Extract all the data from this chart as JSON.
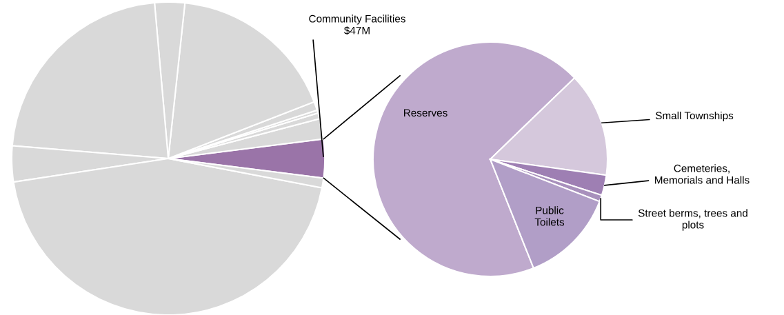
{
  "chart_data": [
    {
      "type": "pie",
      "categories": [
        "Community Facilities\n$47M",
        null,
        null,
        null,
        null,
        null,
        null,
        null,
        null,
        null,
        null
      ],
      "values": [
        4.0,
        2.1,
        0.6,
        0.3,
        0.9,
        17.4,
        3.1,
        22.3,
        3.7,
        44.6,
        1.0
      ],
      "colors": [
        "#9a74a8",
        "#d9d9d9",
        "#d9d9d9",
        "#d9d9d9",
        "#d9d9d9",
        "#d9d9d9",
        "#d9d9d9",
        "#d9d9d9",
        "#d9d9d9",
        "#d9d9d9",
        "#d9d9d9"
      ]
    },
    {
      "type": "pie",
      "categories": [
        "Reserves",
        "Small Townships",
        "Cemeteries,\nMemorials and Halls",
        "Street berms, trees and\nplots",
        "Public\nToilets"
      ],
      "values": [
        68.8,
        14.4,
        2.8,
        0.9,
        13.1
      ],
      "colors": [
        "#bfaacd",
        "#d5c8dc",
        "#9e7fb3",
        "#a890bc",
        "#b19ec7"
      ]
    }
  ]
}
